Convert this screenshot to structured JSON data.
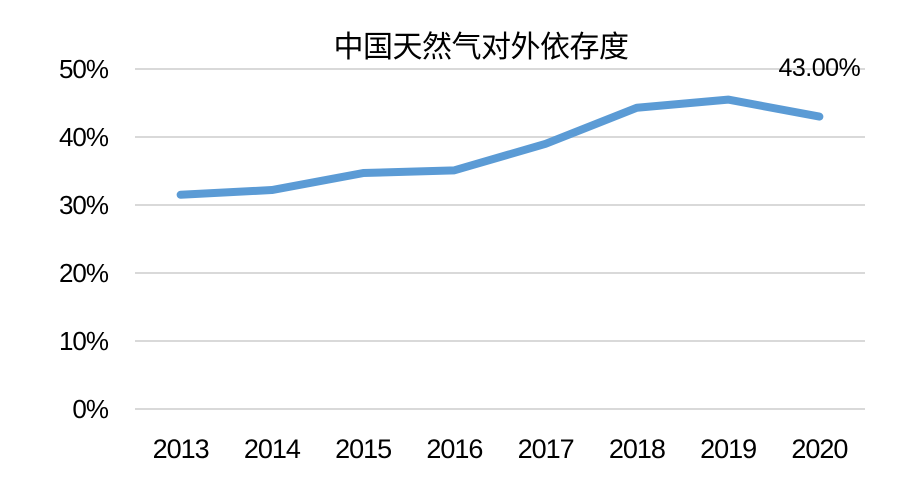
{
  "chart_data": {
    "type": "line",
    "title": "中国天然气对外依存度",
    "categories": [
      "2013",
      "2014",
      "2015",
      "2016",
      "2017",
      "2018",
      "2019",
      "2020"
    ],
    "series": [
      {
        "values": [
          31.5,
          32.2,
          34.7,
          35.1,
          39.0,
          44.3,
          45.5,
          43.0
        ]
      }
    ],
    "ylim": [
      0,
      50
    ],
    "yticks": [
      0,
      10,
      20,
      30,
      40,
      50
    ],
    "ytick_labels": [
      "0%",
      "10%",
      "20%",
      "30%",
      "40%",
      "50%"
    ],
    "xlabel": "",
    "ylabel": "",
    "grid": "horizontal",
    "legend_position": "none",
    "annotations": [
      {
        "text": "43.00%",
        "target": "last-point"
      }
    ],
    "colors": {
      "line": "#5B9BD5",
      "gridline": "#D9D9D9",
      "text": "#000000",
      "background": "#FFFFFF"
    }
  }
}
